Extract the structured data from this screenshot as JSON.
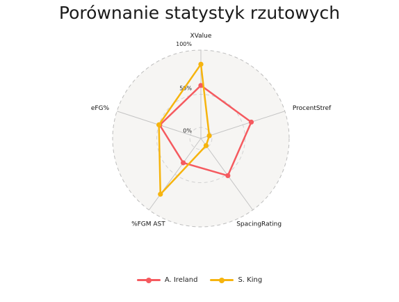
{
  "chart_data": {
    "type": "radar",
    "title": "Porównanie statystyk rzutowych",
    "axes": [
      "XValue",
      "ProcentStref",
      "SpacingRating",
      "%FGM AST",
      "eFG%"
    ],
    "rlim": [
      0,
      100
    ],
    "ticks": [
      "0%",
      "50%",
      "100%"
    ],
    "tick_values": [
      0,
      50,
      100
    ],
    "grid": true,
    "legend_position": "bottom",
    "series": [
      {
        "name": "A. Ireland",
        "color": "#f55a5f",
        "values": [
          60,
          60,
          52,
          34,
          49
        ]
      },
      {
        "name": "S. King",
        "color": "#f6b40e",
        "values": [
          84,
          10,
          10,
          78,
          50
        ]
      }
    ]
  }
}
